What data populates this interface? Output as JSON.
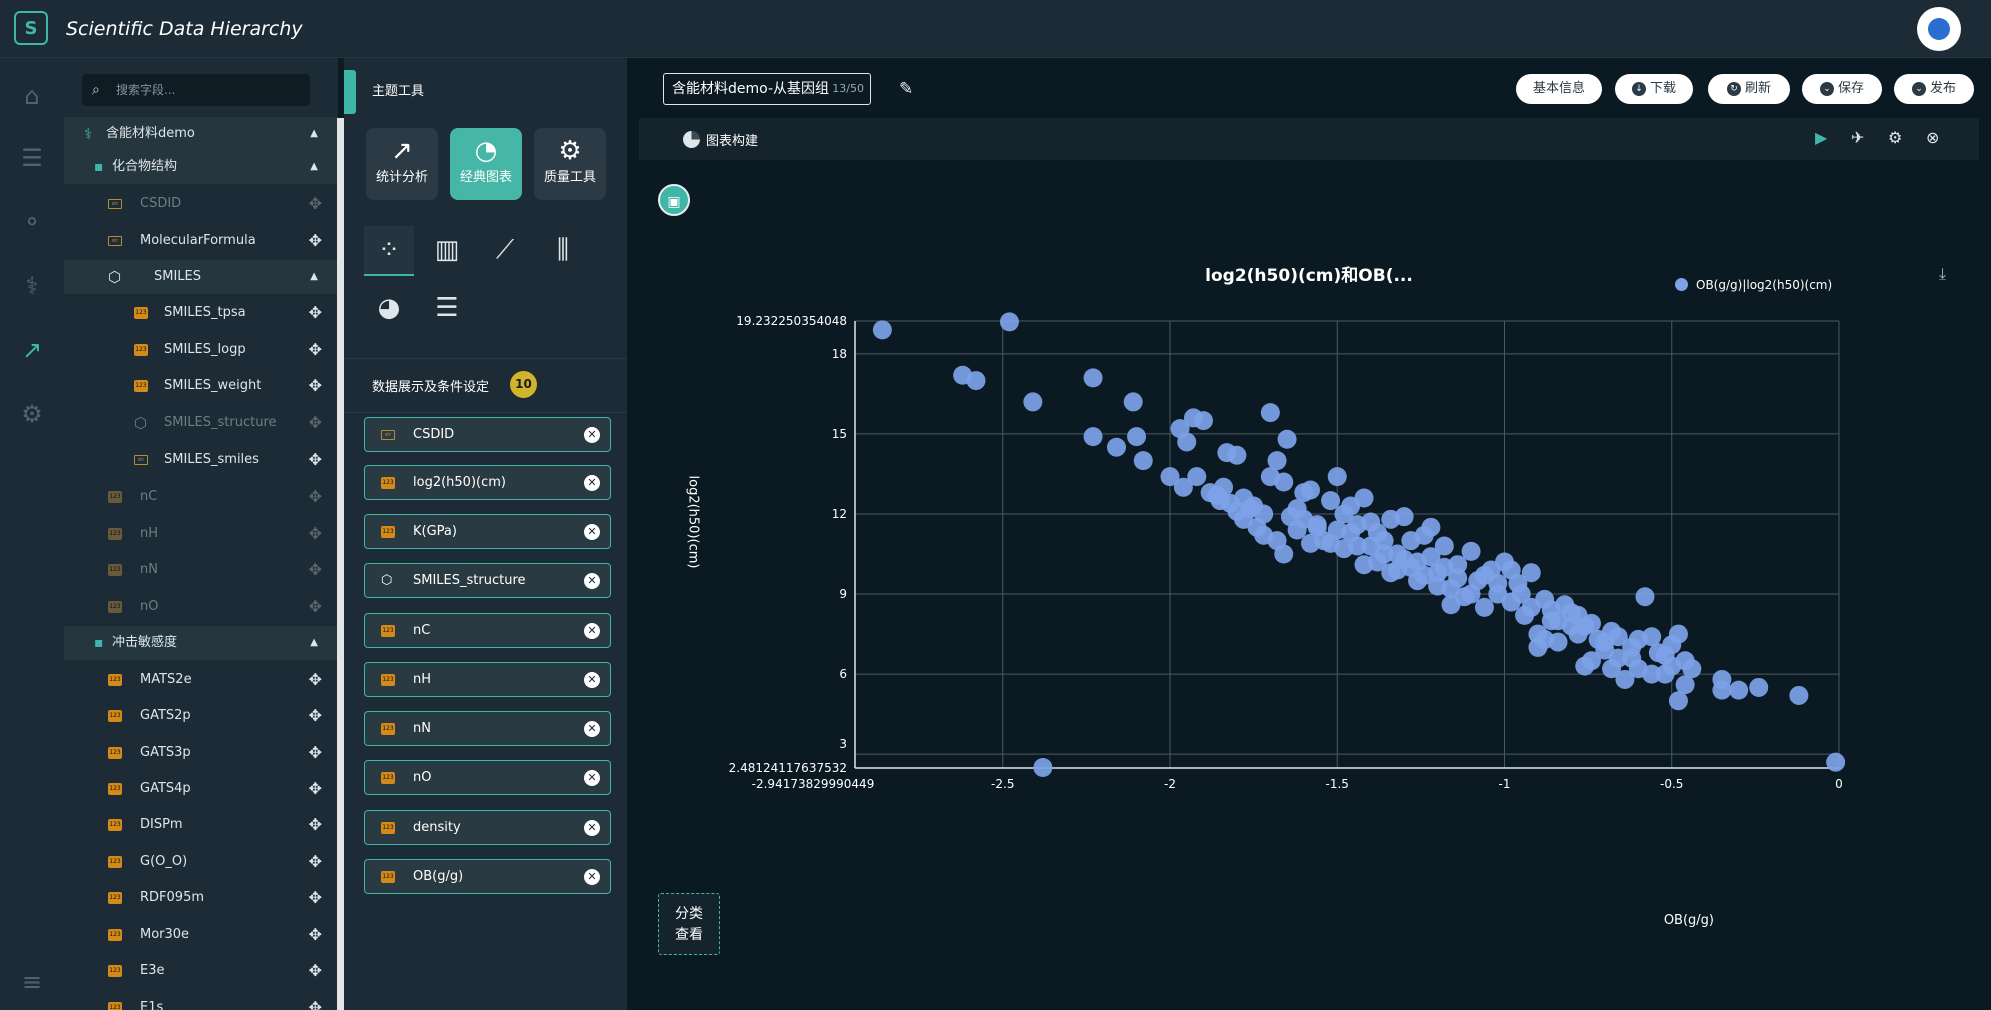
{
  "app": {
    "title": "Scientific Data Hierarchy"
  },
  "search": {
    "placeholder": "搜索字段..."
  },
  "tree": [
    {
      "label": "含能材料demo",
      "icon": "dna-icon",
      "kind": "root"
    },
    {
      "label": "化合物结构",
      "icon": "document-icon",
      "kind": "group"
    },
    {
      "label": "CSDID",
      "icon": "str",
      "kind": "leaf",
      "dim": true
    },
    {
      "label": "MolecularFormula",
      "icon": "str",
      "kind": "leaf"
    },
    {
      "label": "SMILES",
      "icon": "hexagon-icon",
      "kind": "group2"
    },
    {
      "label": "SMILES_tpsa",
      "icon": "123",
      "kind": "leaf2"
    },
    {
      "label": "SMILES_logp",
      "icon": "123",
      "kind": "leaf2"
    },
    {
      "label": "SMILES_weight",
      "icon": "123",
      "kind": "leaf2"
    },
    {
      "label": "SMILES_structure",
      "icon": "hexagon-icon",
      "kind": "leaf2",
      "dim": true
    },
    {
      "label": "SMILES_smiles",
      "icon": "str",
      "kind": "leaf2"
    },
    {
      "label": "nC",
      "icon": "123",
      "kind": "leaf",
      "dim": true
    },
    {
      "label": "nH",
      "icon": "123",
      "kind": "leaf",
      "dim": true
    },
    {
      "label": "nN",
      "icon": "123",
      "kind": "leaf",
      "dim": true
    },
    {
      "label": "nO",
      "icon": "123",
      "kind": "leaf",
      "dim": true
    },
    {
      "label": "冲击敏感度",
      "icon": "document-icon",
      "kind": "group"
    },
    {
      "label": "MATS2e",
      "icon": "123",
      "kind": "leaf"
    },
    {
      "label": "GATS2p",
      "icon": "123",
      "kind": "leaf"
    },
    {
      "label": "GATS3p",
      "icon": "123",
      "kind": "leaf"
    },
    {
      "label": "GATS4p",
      "icon": "123",
      "kind": "leaf"
    },
    {
      "label": "DISPm",
      "icon": "123",
      "kind": "leaf"
    },
    {
      "label": "G(O_O)",
      "icon": "123",
      "kind": "leaf"
    },
    {
      "label": "RDF095m",
      "icon": "123",
      "kind": "leaf"
    },
    {
      "label": "Mor30e",
      "icon": "123",
      "kind": "leaf"
    },
    {
      "label": "E3e",
      "icon": "123",
      "kind": "leaf"
    },
    {
      "label": "E1s",
      "icon": "123",
      "kind": "leaf"
    }
  ],
  "panel": {
    "title": "主题工具",
    "categories": [
      "统计分析",
      "经典图表",
      "质量工具"
    ],
    "settings_title": "数据展示及条件设定",
    "count": "10",
    "fields": [
      {
        "label": "CSDID",
        "icon": "str"
      },
      {
        "label": "log2(h50)(cm)",
        "icon": "123"
      },
      {
        "label": "K(GPa)",
        "icon": "123"
      },
      {
        "label": "SMILES_structure",
        "icon": "hexagon"
      },
      {
        "label": "nC",
        "icon": "123"
      },
      {
        "label": "nH",
        "icon": "123"
      },
      {
        "label": "nN",
        "icon": "123"
      },
      {
        "label": "nO",
        "icon": "123"
      },
      {
        "label": "density",
        "icon": "123"
      },
      {
        "label": "OB(g/g)",
        "icon": "123"
      }
    ]
  },
  "main": {
    "name": "含能材料demo-从基因组",
    "name_count": "13/50",
    "buttons": [
      "基本信息",
      "下载",
      "刷新",
      "保存",
      "发布"
    ],
    "sub_label": "图表构建",
    "classify": [
      "分类",
      "查看"
    ]
  },
  "colors": {
    "accent": "#3fb6a8",
    "point": "#7da2e8",
    "bg": "#0b1a22"
  },
  "chart_data": {
    "type": "scatter",
    "title": "log2(h50)(cm)和OB(...",
    "xlabel": "OB(g/g)",
    "ylabel": "log2(h50)(cm)",
    "legend": [
      "OB(g/g)|log2(h50)(cm)"
    ],
    "xlim": [
      -2.94173829990449,
      0
    ],
    "ylim": [
      2.48124117637532,
      19.232250354048
    ],
    "xticks": [
      "-2.94173829990449",
      "-2.5",
      "-2",
      "-1.5",
      "-1",
      "-0.5",
      "0"
    ],
    "yticks": [
      "2.48124117637532",
      "3",
      "6",
      "9",
      "12",
      "15",
      "18",
      "19.232250354048"
    ],
    "series": [
      {
        "name": "OB(g/g)|log2(h50)(cm)",
        "points": [
          [
            -2.86,
            18.9
          ],
          [
            -2.48,
            19.2
          ],
          [
            -2.62,
            17.2
          ],
          [
            -2.58,
            17.0
          ],
          [
            -2.41,
            16.2
          ],
          [
            -2.38,
            2.5
          ],
          [
            -2.23,
            17.1
          ],
          [
            -2.23,
            14.9
          ],
          [
            -2.16,
            14.5
          ],
          [
            -2.11,
            16.2
          ],
          [
            -2.1,
            14.9
          ],
          [
            -2.08,
            14.0
          ],
          [
            -2.0,
            13.4
          ],
          [
            -1.97,
            15.2
          ],
          [
            -1.95,
            14.7
          ],
          [
            -1.93,
            15.6
          ],
          [
            -1.9,
            15.5
          ],
          [
            -1.96,
            13.0
          ],
          [
            -1.92,
            13.4
          ],
          [
            -1.88,
            12.8
          ],
          [
            -1.85,
            12.5
          ],
          [
            -1.83,
            14.3
          ],
          [
            -1.8,
            14.2
          ],
          [
            -1.78,
            12.6
          ],
          [
            -1.75,
            12.3
          ],
          [
            -1.72,
            12.0
          ],
          [
            -1.7,
            15.8
          ],
          [
            -1.68,
            14.0
          ],
          [
            -1.65,
            14.8
          ],
          [
            -1.66,
            13.2
          ],
          [
            -1.62,
            12.2
          ],
          [
            -1.6,
            11.8
          ],
          [
            -1.58,
            12.9
          ],
          [
            -1.56,
            11.5
          ],
          [
            -1.54,
            11.0
          ],
          [
            -1.52,
            12.5
          ],
          [
            -1.5,
            13.4
          ],
          [
            -1.48,
            12.0
          ],
          [
            -1.46,
            11.3
          ],
          [
            -1.44,
            10.8
          ],
          [
            -1.42,
            12.6
          ],
          [
            -1.4,
            11.7
          ],
          [
            -1.38,
            10.2
          ],
          [
            -1.36,
            11.0
          ],
          [
            -1.34,
            9.8
          ],
          [
            -1.32,
            10.5
          ],
          [
            -1.3,
            11.9
          ],
          [
            -1.28,
            10.0
          ],
          [
            -1.26,
            9.5
          ],
          [
            -1.24,
            11.2
          ],
          [
            -1.22,
            10.4
          ],
          [
            -1.2,
            9.8
          ],
          [
            -1.18,
            10.8
          ],
          [
            -1.16,
            9.2
          ],
          [
            -1.14,
            10.1
          ],
          [
            -1.12,
            8.9
          ],
          [
            -1.1,
            10.6
          ],
          [
            -1.08,
            9.5
          ],
          [
            -1.06,
            8.5
          ],
          [
            -1.04,
            9.9
          ],
          [
            -1.02,
            9.0
          ],
          [
            -1.0,
            10.2
          ],
          [
            -0.98,
            8.7
          ],
          [
            -0.96,
            9.4
          ],
          [
            -0.94,
            8.2
          ],
          [
            -0.92,
            9.8
          ],
          [
            -0.9,
            7.5
          ],
          [
            -0.88,
            8.8
          ],
          [
            -0.86,
            8.0
          ],
          [
            -0.84,
            7.2
          ],
          [
            -0.82,
            8.6
          ],
          [
            -0.8,
            7.8
          ],
          [
            -0.78,
            8.2
          ],
          [
            -0.76,
            6.3
          ],
          [
            -0.74,
            7.9
          ],
          [
            -0.72,
            7.3
          ],
          [
            -0.7,
            6.9
          ],
          [
            -0.68,
            7.6
          ],
          [
            -0.66,
            6.6
          ],
          [
            -0.64,
            5.8
          ],
          [
            -0.62,
            7.0
          ],
          [
            -0.6,
            6.2
          ],
          [
            -0.58,
            8.9
          ],
          [
            -0.56,
            7.4
          ],
          [
            -0.54,
            6.8
          ],
          [
            -0.52,
            6.0
          ],
          [
            -0.5,
            7.1
          ],
          [
            -0.48,
            5.0
          ],
          [
            -0.46,
            6.5
          ],
          [
            -0.44,
            6.2
          ],
          [
            -0.35,
            5.8
          ],
          [
            -0.35,
            5.4
          ],
          [
            -0.3,
            5.4
          ],
          [
            -0.24,
            5.5
          ],
          [
            -0.12,
            5.2
          ],
          [
            -0.01,
            2.7
          ],
          [
            -1.86,
            12.7
          ],
          [
            -1.84,
            13.0
          ],
          [
            -1.82,
            12.4
          ],
          [
            -1.8,
            12.1
          ],
          [
            -1.78,
            11.8
          ],
          [
            -1.76,
            12.2
          ],
          [
            -1.74,
            11.5
          ],
          [
            -1.72,
            11.2
          ],
          [
            -1.7,
            13.4
          ],
          [
            -1.68,
            11.0
          ],
          [
            -1.66,
            10.5
          ],
          [
            -1.64,
            11.9
          ],
          [
            -1.62,
            11.4
          ],
          [
            -1.6,
            12.8
          ],
          [
            -1.58,
            10.9
          ],
          [
            -1.56,
            11.6
          ],
          [
            -1.52,
            10.9
          ],
          [
            -1.5,
            11.4
          ],
          [
            -1.48,
            10.7
          ],
          [
            -1.46,
            12.3
          ],
          [
            -1.44,
            11.6
          ],
          [
            -1.42,
            10.1
          ],
          [
            -1.4,
            10.8
          ],
          [
            -1.38,
            11.3
          ],
          [
            -1.36,
            10.5
          ],
          [
            -1.34,
            11.8
          ],
          [
            -1.32,
            9.9
          ],
          [
            -1.3,
            10.3
          ],
          [
            -1.28,
            11.0
          ],
          [
            -1.26,
            10.2
          ],
          [
            -1.24,
            9.7
          ],
          [
            -1.22,
            11.5
          ],
          [
            -1.2,
            9.3
          ],
          [
            -1.18,
            10.0
          ],
          [
            -1.16,
            8.6
          ],
          [
            -1.14,
            9.6
          ],
          [
            -1.1,
            9.0
          ],
          [
            -1.06,
            9.7
          ],
          [
            -1.02,
            9.4
          ],
          [
            -0.98,
            9.9
          ],
          [
            -0.95,
            9.0
          ],
          [
            -0.92,
            8.5
          ],
          [
            -0.9,
            7.0
          ],
          [
            -0.88,
            7.3
          ],
          [
            -0.86,
            8.4
          ],
          [
            -0.84,
            8.0
          ],
          [
            -0.8,
            8.3
          ],
          [
            -0.78,
            7.5
          ],
          [
            -0.76,
            7.8
          ],
          [
            -0.74,
            6.5
          ],
          [
            -0.7,
            7.2
          ],
          [
            -0.68,
            6.2
          ],
          [
            -0.66,
            7.4
          ],
          [
            -0.62,
            6.6
          ],
          [
            -0.6,
            7.3
          ],
          [
            -0.56,
            6.0
          ],
          [
            -0.52,
            6.7
          ],
          [
            -0.5,
            6.3
          ],
          [
            -0.48,
            7.5
          ],
          [
            -0.46,
            5.6
          ]
        ]
      }
    ]
  }
}
